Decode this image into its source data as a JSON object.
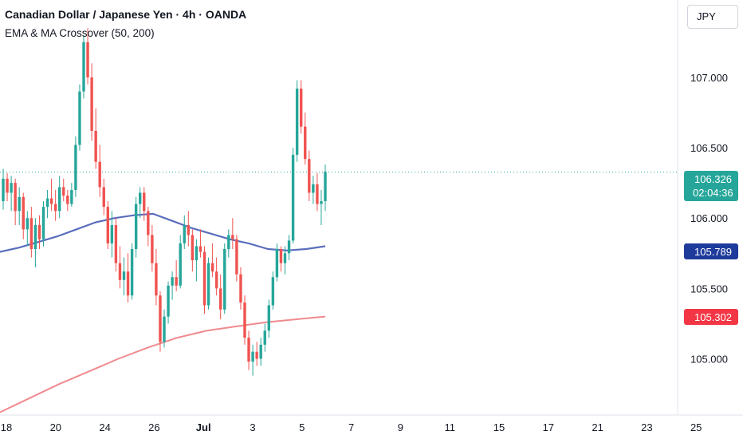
{
  "header": {
    "title": "Canadian Dollar / Japanese Yen · 4h · OANDA",
    "indicator": "EMA & MA Crossover (50, 200)",
    "currency": "JPY"
  },
  "colors": {
    "up": "#26a69a",
    "down": "#ef5350",
    "ema": "#5b6ebd",
    "ma": "#f08a8f",
    "ema_badge": "#1e3b9b",
    "ma_badge": "#f23645",
    "last_price_line": "#26a69a"
  },
  "price_badge": {
    "price": "106.326",
    "countdown": "02:04:36"
  },
  "ema_badge": "105.789",
  "ma_badge": "105.302",
  "chart_data": {
    "type": "candlestick",
    "title": "Canadian Dollar / Japanese Yen · 4h · OANDA",
    "y_ticks": [
      "107.000",
      "106.500",
      "106.000",
      "105.500",
      "105.000"
    ],
    "x_ticks": [
      "18",
      "20",
      "24",
      "26",
      "Jul",
      "3",
      "5",
      "7",
      "9",
      "11",
      "15",
      "17",
      "21",
      "23",
      "25"
    ],
    "ylim": [
      104.6,
      107.55
    ],
    "last_price": 106.326,
    "series": [
      {
        "name": "OHLC",
        "ohlc": [
          [
            106.12,
            106.35,
            106.06,
            106.28
          ],
          [
            106.28,
            106.32,
            106.12,
            106.18
          ],
          [
            106.18,
            106.3,
            106.05,
            106.25
          ],
          [
            106.25,
            106.28,
            105.95,
            106.05
          ],
          [
            106.05,
            106.22,
            105.95,
            106.15
          ],
          [
            106.15,
            106.18,
            105.85,
            105.92
          ],
          [
            105.92,
            106.05,
            105.8,
            106.0
          ],
          [
            106.0,
            106.08,
            105.72,
            105.78
          ],
          [
            105.78,
            106.0,
            105.65,
            105.95
          ],
          [
            105.95,
            106.02,
            105.78,
            105.85
          ],
          [
            105.85,
            106.12,
            105.8,
            106.08
          ],
          [
            106.08,
            106.2,
            106.0,
            106.14
          ],
          [
            106.14,
            106.28,
            106.05,
            106.1
          ],
          [
            106.1,
            106.2,
            105.98,
            106.05
          ],
          [
            106.05,
            106.3,
            106.0,
            106.22
          ],
          [
            106.22,
            106.28,
            106.12,
            106.16
          ],
          [
            106.16,
            106.2,
            106.05,
            106.1
          ],
          [
            106.1,
            106.25,
            106.08,
            106.2
          ],
          [
            106.2,
            106.58,
            106.15,
            106.52
          ],
          [
            106.52,
            106.95,
            106.48,
            106.9
          ],
          [
            106.9,
            107.3,
            106.85,
            107.25
          ],
          [
            107.25,
            107.35,
            106.95,
            107.0
          ],
          [
            107.0,
            107.1,
            106.55,
            106.62
          ],
          [
            106.62,
            106.78,
            106.35,
            106.4
          ],
          [
            106.4,
            106.52,
            106.15,
            106.22
          ],
          [
            106.22,
            106.28,
            106.02,
            106.08
          ],
          [
            106.08,
            106.12,
            105.78,
            105.82
          ],
          [
            105.82,
            106.05,
            105.72,
            105.95
          ],
          [
            105.95,
            106.0,
            105.62,
            105.68
          ],
          [
            105.68,
            105.8,
            105.5,
            105.56
          ],
          [
            105.56,
            105.72,
            105.45,
            105.62
          ],
          [
            105.62,
            105.75,
            105.4,
            105.45
          ],
          [
            105.45,
            105.82,
            105.42,
            105.78
          ],
          [
            105.78,
            106.15,
            105.72,
            106.1
          ],
          [
            106.1,
            106.22,
            106.0,
            106.18
          ],
          [
            106.18,
            106.22,
            105.98,
            106.05
          ],
          [
            106.05,
            106.08,
            105.8,
            105.88
          ],
          [
            105.88,
            105.95,
            105.62,
            105.68
          ],
          [
            105.68,
            105.78,
            105.38,
            105.45
          ],
          [
            105.45,
            105.48,
            105.05,
            105.12
          ],
          [
            105.12,
            105.35,
            105.08,
            105.3
          ],
          [
            105.3,
            105.55,
            105.25,
            105.52
          ],
          [
            105.52,
            105.62,
            105.42,
            105.58
          ],
          [
            105.58,
            105.7,
            105.48,
            105.52
          ],
          [
            105.52,
            105.88,
            105.5,
            105.82
          ],
          [
            105.82,
            106.02,
            105.78,
            105.95
          ],
          [
            105.95,
            106.05,
            105.8,
            105.88
          ],
          [
            105.88,
            105.92,
            105.62,
            105.7
          ],
          [
            105.7,
            105.85,
            105.55,
            105.8
          ],
          [
            105.8,
            105.92,
            105.72,
            105.76
          ],
          [
            105.76,
            105.8,
            105.32,
            105.38
          ],
          [
            105.38,
            105.72,
            105.35,
            105.68
          ],
          [
            105.68,
            105.82,
            105.58,
            105.62
          ],
          [
            105.62,
            105.72,
            105.45,
            105.5
          ],
          [
            105.5,
            105.6,
            105.28,
            105.35
          ],
          [
            105.35,
            105.82,
            105.32,
            105.78
          ],
          [
            105.78,
            105.92,
            105.72,
            105.88
          ],
          [
            105.88,
            106.0,
            105.78,
            105.85
          ],
          [
            105.85,
            105.88,
            105.55,
            105.6
          ],
          [
            105.6,
            105.65,
            105.35,
            105.4
          ],
          [
            105.4,
            105.45,
            105.1,
            105.15
          ],
          [
            105.15,
            105.2,
            104.92,
            104.98
          ],
          [
            104.98,
            105.1,
            104.88,
            105.05
          ],
          [
            105.05,
            105.12,
            104.95,
            105.0
          ],
          [
            105.0,
            105.15,
            104.95,
            105.1
          ],
          [
            105.1,
            105.25,
            105.05,
            105.2
          ],
          [
            105.2,
            105.42,
            105.15,
            105.38
          ],
          [
            105.38,
            105.62,
            105.35,
            105.58
          ],
          [
            105.58,
            105.82,
            105.55,
            105.78
          ],
          [
            105.78,
            105.8,
            105.62,
            105.68
          ],
          [
            105.68,
            105.8,
            105.6,
            105.75
          ],
          [
            105.75,
            105.88,
            105.7,
            105.84
          ],
          [
            105.84,
            106.5,
            105.82,
            106.45
          ],
          [
            106.45,
            106.98,
            106.4,
            106.92
          ],
          [
            106.92,
            106.98,
            106.6,
            106.65
          ],
          [
            106.65,
            106.75,
            106.38,
            106.42
          ],
          [
            106.42,
            106.48,
            106.12,
            106.18
          ],
          [
            106.18,
            106.3,
            106.1,
            106.24
          ],
          [
            106.24,
            106.32,
            106.05,
            106.1
          ],
          [
            106.1,
            106.2,
            105.95,
            106.12
          ],
          [
            106.12,
            106.38,
            106.05,
            106.33
          ]
        ]
      },
      {
        "name": "EMA (50)",
        "values": [
          105.76,
          105.79,
          105.83,
          105.87,
          105.92,
          105.97,
          106.0,
          106.02,
          106.03,
          105.98,
          105.93,
          105.89,
          105.85,
          105.82,
          105.78,
          105.77,
          105.78,
          105.8
        ]
      },
      {
        "name": "MA (200)",
        "values": [
          104.62,
          104.72,
          104.82,
          104.91,
          105.0,
          105.08,
          105.15,
          105.2,
          105.23,
          105.26,
          105.28,
          105.3
        ]
      }
    ]
  }
}
